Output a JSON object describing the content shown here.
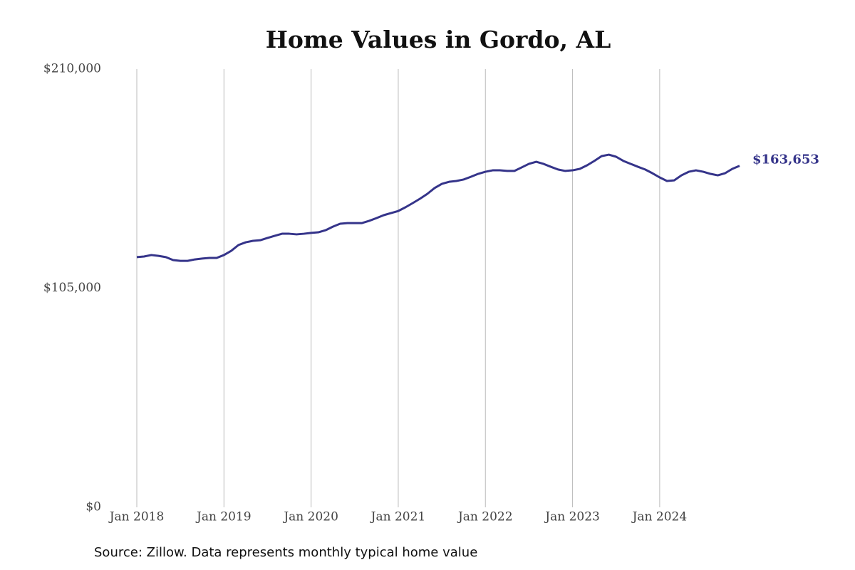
{
  "chart_data": {
    "type": "line",
    "title": "Home Values in Gordo, AL",
    "source": "Source: Zillow. Data represents monthly typical home value",
    "x": [
      "2018-01",
      "2018-02",
      "2018-03",
      "2018-04",
      "2018-05",
      "2018-06",
      "2018-07",
      "2018-08",
      "2018-09",
      "2018-10",
      "2018-11",
      "2018-12",
      "2019-01",
      "2019-02",
      "2019-03",
      "2019-04",
      "2019-05",
      "2019-06",
      "2019-07",
      "2019-08",
      "2019-09",
      "2019-10",
      "2019-11",
      "2019-12",
      "2020-01",
      "2020-02",
      "2020-03",
      "2020-04",
      "2020-05",
      "2020-06",
      "2020-07",
      "2020-08",
      "2020-09",
      "2020-10",
      "2020-11",
      "2020-12",
      "2021-01",
      "2021-02",
      "2021-03",
      "2021-04",
      "2021-05",
      "2021-06",
      "2021-07",
      "2021-08",
      "2021-09",
      "2021-10",
      "2021-11",
      "2021-12",
      "2022-01",
      "2022-02",
      "2022-03",
      "2022-04",
      "2022-05",
      "2022-06",
      "2022-07",
      "2022-08",
      "2022-09",
      "2022-10",
      "2022-11",
      "2022-12",
      "2023-01",
      "2023-02",
      "2023-03",
      "2023-04",
      "2023-05",
      "2023-06",
      "2023-07",
      "2023-08",
      "2023-09",
      "2023-10",
      "2023-11",
      "2023-12",
      "2024-01",
      "2024-02",
      "2024-03",
      "2024-04",
      "2024-05",
      "2024-06",
      "2024-07",
      "2024-08",
      "2024-09",
      "2024-10",
      "2024-11",
      "2024-12"
    ],
    "values": [
      119900,
      120200,
      120900,
      120500,
      119900,
      118500,
      118100,
      118100,
      118800,
      119200,
      119500,
      119500,
      120900,
      122900,
      125700,
      127000,
      127700,
      128000,
      129100,
      130100,
      131100,
      131100,
      130800,
      131100,
      131500,
      131800,
      132800,
      134500,
      135900,
      136200,
      136200,
      136200,
      137300,
      138600,
      140000,
      141000,
      142000,
      143800,
      145800,
      147900,
      150200,
      153000,
      155000,
      156000,
      156400,
      157100,
      158400,
      159800,
      160800,
      161500,
      161500,
      161200,
      161200,
      162900,
      164600,
      165600,
      164600,
      163200,
      161900,
      161200,
      161500,
      162200,
      163900,
      166000,
      168300,
      169000,
      168000,
      166000,
      164600,
      163200,
      161900,
      160100,
      158100,
      156400,
      156700,
      159100,
      160800,
      161500,
      160800,
      159800,
      159100,
      160100,
      162200,
      163653
    ],
    "value_labels": [
      null,
      null,
      null,
      null,
      null,
      null,
      null,
      null,
      null,
      null,
      null,
      null,
      null,
      null,
      null,
      null,
      null,
      null,
      null,
      null,
      null,
      null,
      null,
      null,
      null,
      null,
      null,
      null,
      null,
      null,
      null,
      null,
      null,
      null,
      null,
      null,
      null,
      null,
      null,
      null,
      null,
      null,
      null,
      null,
      null,
      null,
      null,
      null,
      null,
      null,
      null,
      null,
      null,
      null,
      null,
      null,
      null,
      null,
      null,
      null,
      null,
      null,
      null,
      null,
      null,
      null,
      null,
      null,
      null,
      null,
      null,
      null,
      null,
      null,
      null,
      null,
      null,
      null,
      null,
      null,
      null,
      null,
      null,
      "$163,653"
    ],
    "color": "#35348a",
    "xlim": [
      "2018-01",
      "2024-12"
    ],
    "xticks": [
      {
        "value": "2018-01",
        "label": "Jan 2018"
      },
      {
        "value": "2019-01",
        "label": "Jan 2019"
      },
      {
        "value": "2020-01",
        "label": "Jan 2020"
      },
      {
        "value": "2021-01",
        "label": "Jan 2021"
      },
      {
        "value": "2022-01",
        "label": "Jan 2022"
      },
      {
        "value": "2023-01",
        "label": "Jan 2023"
      },
      {
        "value": "2024-01",
        "label": "Jan 2024"
      }
    ],
    "ylim": [
      0,
      210000
    ],
    "yticks": [
      {
        "value": 0,
        "label": "$0"
      },
      {
        "value": 105000,
        "label": "$105,000"
      },
      {
        "value": 210000,
        "label": "$210,000"
      }
    ],
    "grid": "x"
  }
}
